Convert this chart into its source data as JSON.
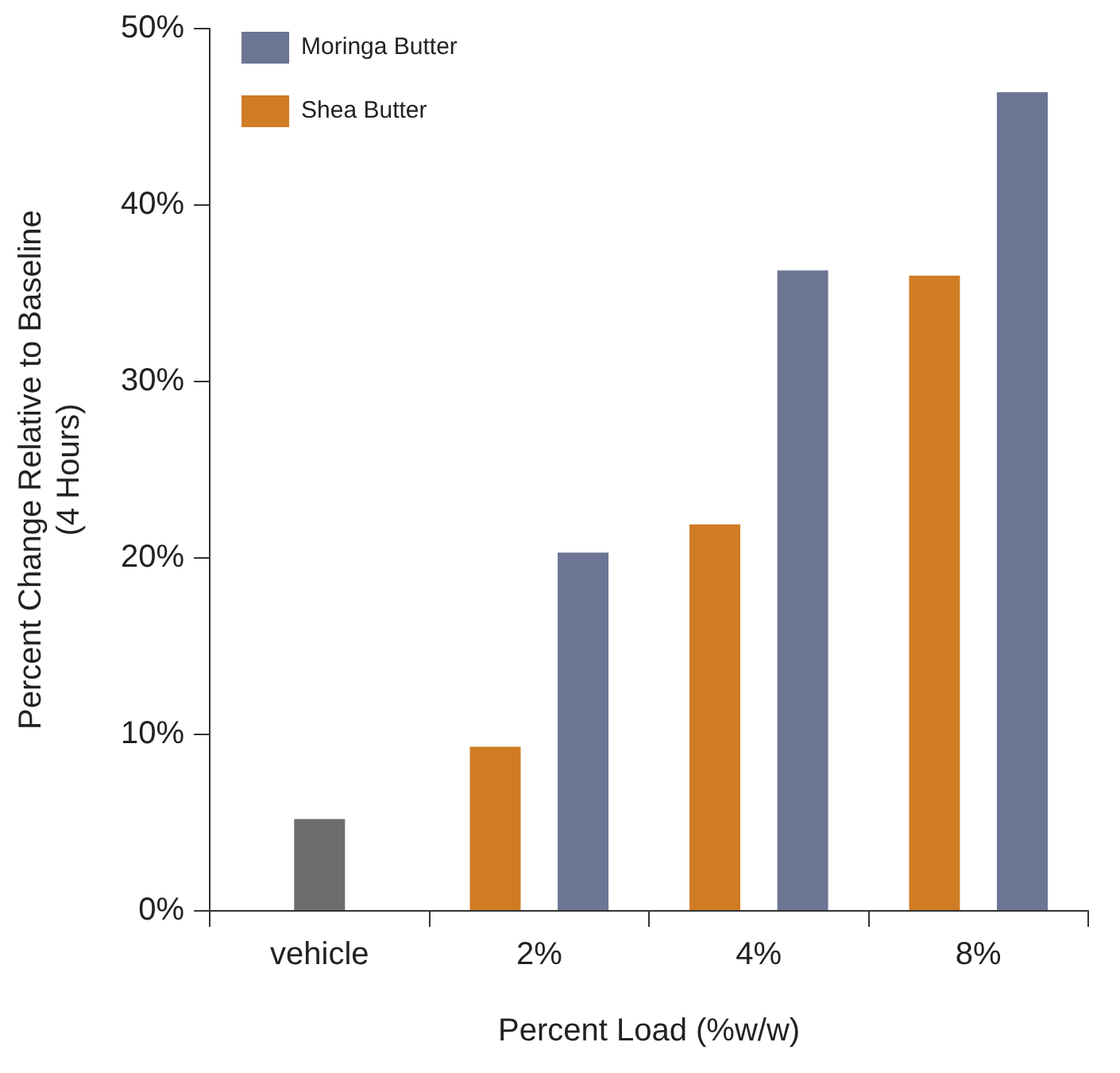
{
  "chart_data": {
    "type": "bar",
    "xlabel": "Percent Load (%w/w)",
    "ylabel": "Percent Change Relative to Baseline\n(4 Hours)",
    "categories": [
      "vehicle",
      "2%",
      "4%",
      "8%"
    ],
    "series": [
      {
        "color": "#6d6d70",
        "values": [
          5.2,
          null,
          null,
          null
        ]
      },
      {
        "name": "Shea Butter",
        "color": "#d07c24",
        "values": [
          null,
          9.3,
          21.9,
          36.0
        ]
      },
      {
        "name": "Moringa Butter",
        "color": "#6c7594",
        "values": [
          null,
          20.3,
          36.3,
          46.4
        ]
      }
    ],
    "ylim": [
      0,
      50
    ],
    "yticks": [
      {
        "value": 0,
        "label": "0%"
      },
      {
        "value": 10,
        "label": "10%"
      },
      {
        "value": 20,
        "label": "20%"
      },
      {
        "value": 30,
        "label": "30%"
      },
      {
        "value": 40,
        "label": "40%"
      },
      {
        "value": 50,
        "label": "50%"
      }
    ],
    "grid": false,
    "legend": "top left"
  }
}
